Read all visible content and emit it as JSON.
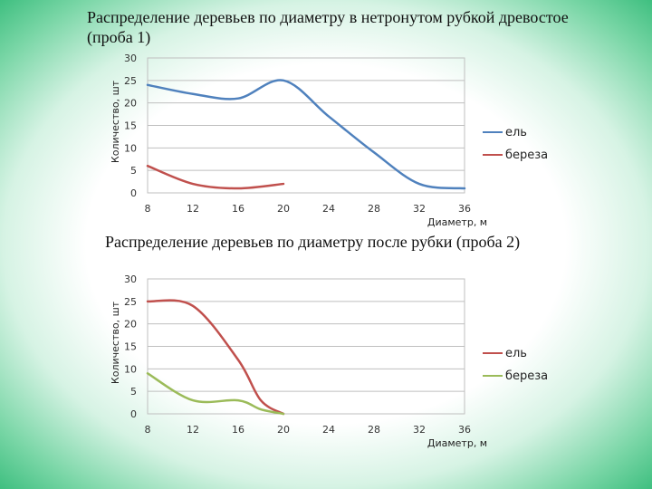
{
  "slide": {
    "title1": "Распределение деревьев по диаметру в нетронутом рубкой древостое (проба 1)",
    "title2": "Распределение деревьев по диаметру после рубки (проба 2)"
  },
  "chart_data": [
    {
      "type": "line",
      "title": "Распределение деревьев по диаметру в нетронутом рубкой древостое (проба 1)",
      "xlabel": "Диаметр, м",
      "ylabel": "Количество, шт",
      "x_ticks": [
        8,
        12,
        16,
        20,
        24,
        28,
        32,
        36
      ],
      "y_ticks": [
        0,
        5,
        10,
        15,
        20,
        25,
        30
      ],
      "xlim": [
        8,
        36
      ],
      "ylim": [
        0,
        30
      ],
      "grid": "horizontal",
      "legend_position": "right",
      "series": [
        {
          "name": "ель",
          "color": "#4f81bd",
          "x": [
            8,
            12,
            16,
            20,
            24,
            28,
            32,
            36
          ],
          "values": [
            24,
            22,
            21,
            25,
            17,
            9,
            2,
            1
          ]
        },
        {
          "name": "береза",
          "color": "#c0504d",
          "x": [
            8,
            12,
            16,
            20
          ],
          "values": [
            6,
            2,
            1,
            2
          ]
        }
      ]
    },
    {
      "type": "line",
      "title": "Распределение деревьев по диаметру после рубки (проба 2)",
      "xlabel": "Диаметр, м",
      "ylabel": "Количество, шт",
      "x_ticks": [
        8,
        12,
        16,
        20,
        24,
        28,
        32,
        36
      ],
      "y_ticks": [
        0,
        5,
        10,
        15,
        20,
        25,
        30
      ],
      "xlim": [
        8,
        36
      ],
      "ylim": [
        0,
        30
      ],
      "grid": "horizontal",
      "legend_position": "right",
      "series": [
        {
          "name": "ель",
          "color": "#c0504d",
          "x": [
            8,
            12,
            16,
            18,
            20
          ],
          "values": [
            25,
            24,
            12,
            3,
            0
          ]
        },
        {
          "name": "береза",
          "color": "#9bbb59",
          "x": [
            8,
            12,
            16,
            18,
            20
          ],
          "values": [
            9,
            3,
            3,
            1,
            0
          ]
        }
      ]
    }
  ]
}
